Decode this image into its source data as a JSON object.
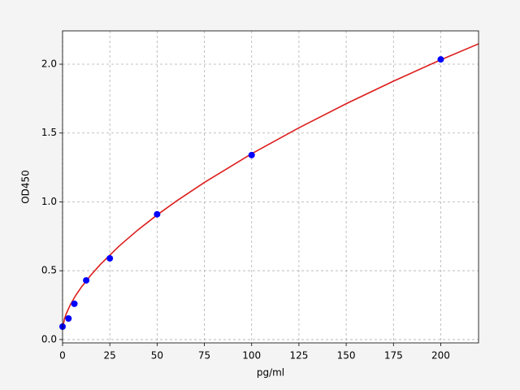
{
  "chart_data": {
    "type": "scatter",
    "xlabel": "pg/ml",
    "ylabel": "OD450",
    "xlim": [
      0,
      220
    ],
    "ylim": [
      -0.024,
      2.242
    ],
    "xticks": [
      0,
      25,
      50,
      75,
      100,
      125,
      150,
      175,
      200
    ],
    "yticks": [
      {
        "value": 0,
        "label": "0.0"
      },
      {
        "value": 0.5,
        "label": "0.5"
      },
      {
        "value": 1,
        "label": "1.0"
      },
      {
        "value": 1.5,
        "label": "1.5"
      },
      {
        "value": 2,
        "label": "2.0"
      }
    ],
    "grid": true,
    "series": [
      {
        "style": "line",
        "color": "#dd1c1c",
        "x": [
          0,
          1,
          2,
          4,
          7,
          10,
          15,
          20,
          30,
          40,
          50,
          60,
          75,
          100,
          125,
          150,
          175,
          200,
          220
        ],
        "values": [
          0.077,
          0.15,
          0.189,
          0.25,
          0.322,
          0.382,
          0.469,
          0.546,
          0.68,
          0.798,
          0.905,
          1.004,
          1.141,
          1.35,
          1.538,
          1.713,
          1.877,
          2.032,
          2.148
        ]
      },
      {
        "style": "points",
        "color": "#0000ff",
        "x": [
          0,
          3.125,
          6.25,
          12.5,
          25,
          50,
          100,
          200
        ],
        "values": [
          0.094,
          0.153,
          0.26,
          0.43,
          0.59,
          0.91,
          1.34,
          2.035
        ]
      }
    ]
  }
}
